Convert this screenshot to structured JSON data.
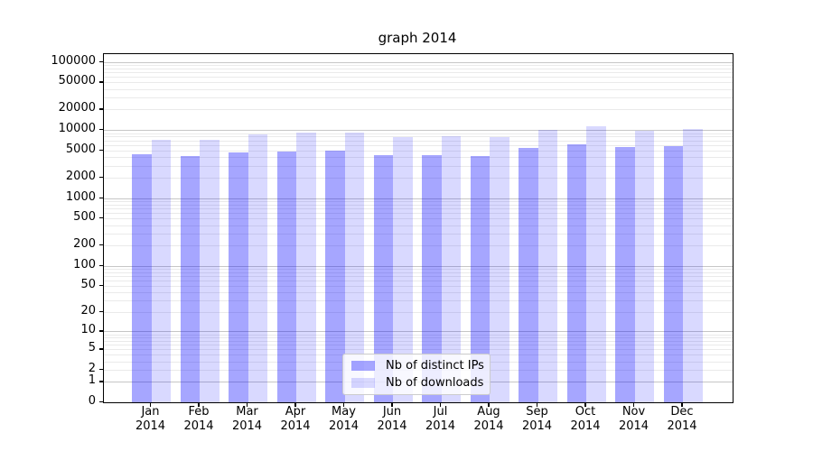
{
  "title": "graph 2014",
  "colors": {
    "ips_bar": "rgba(0,0,255,0.35)",
    "downloads_bar": "rgba(0,0,255,0.15)",
    "grid_major": "#c6c6c6",
    "grid_minor": "#eaeaea",
    "spine": "#000000",
    "background": "#ffffff",
    "legend_border": "#cccccc"
  },
  "legend": {
    "items": [
      {
        "label": "Nb of distinct IPs",
        "color_key": "ips_bar"
      },
      {
        "label": "Nb of downloads",
        "color_key": "downloads_bar"
      }
    ]
  },
  "chart_data": {
    "type": "bar",
    "title": "graph 2014",
    "categories": [
      "Jan",
      "Feb",
      "Mar",
      "Apr",
      "May",
      "Jun",
      "Jul",
      "Aug",
      "Sep",
      "Oct",
      "Nov",
      "Dec"
    ],
    "category_year": "2014",
    "series": [
      {
        "name": "Nb of distinct IPs",
        "values": [
          4350,
          4100,
          4650,
          4800,
          4950,
          4250,
          4300,
          4150,
          5500,
          6100,
          5550,
          5850
        ]
      },
      {
        "name": "Nb of downloads",
        "values": [
          7200,
          7250,
          8500,
          9200,
          9100,
          7900,
          8100,
          7750,
          10000,
          11200,
          9600,
          10200
        ]
      }
    ],
    "yscale": "log1p",
    "yticks": [
      0,
      1,
      2,
      5,
      10,
      20,
      50,
      100,
      200,
      500,
      1000,
      2000,
      5000,
      10000,
      20000,
      50000,
      100000
    ],
    "ylim": [
      0,
      130000
    ],
    "xlabel": "",
    "ylabel": "",
    "grid": true,
    "legend_position": "lower center"
  }
}
